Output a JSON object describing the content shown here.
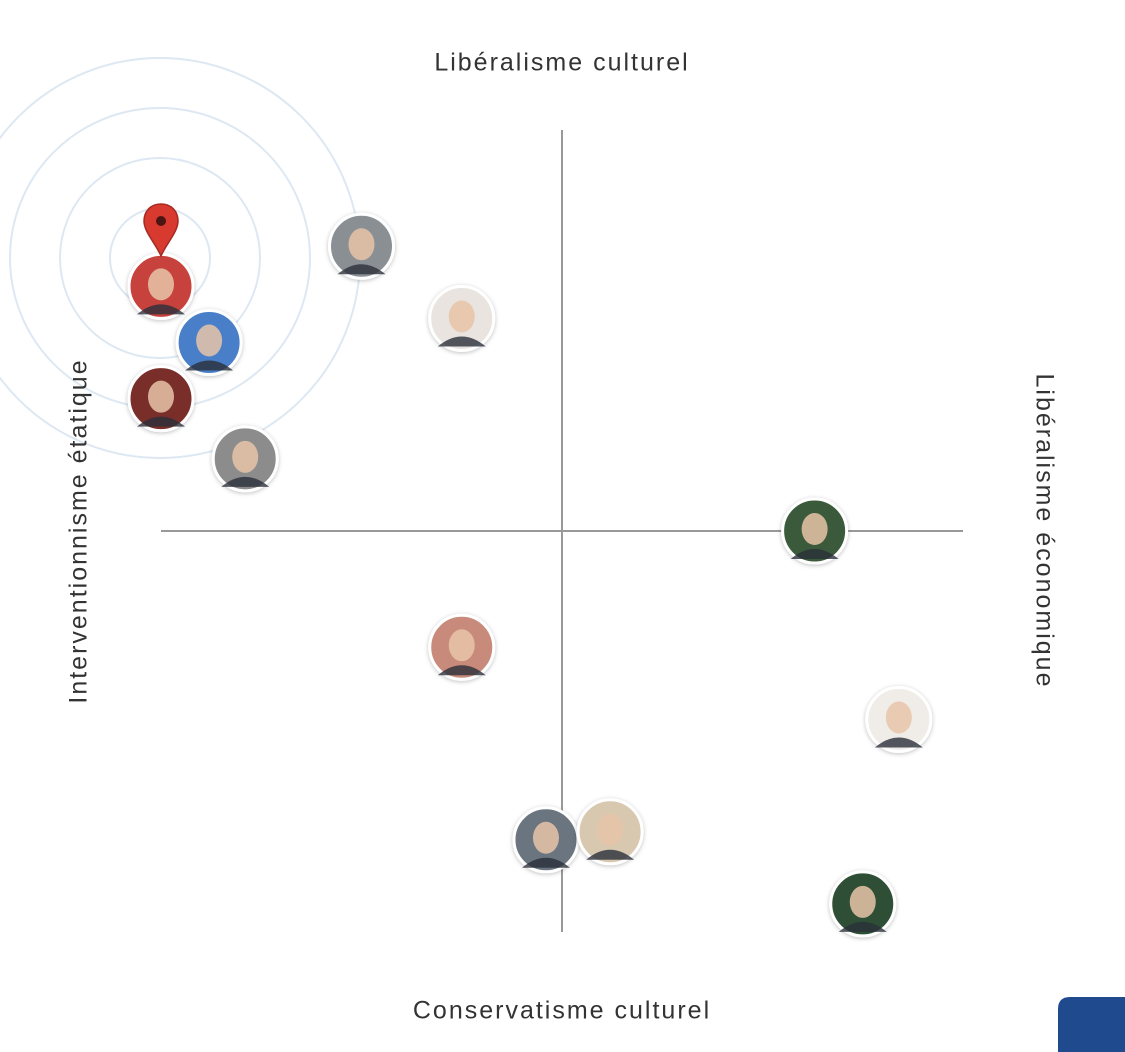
{
  "chart_data": {
    "type": "scatter",
    "top_label": "Libéralisme culturel",
    "bottom_label": "Conservatisme culturel",
    "left_label": "Interventionnisme étatique",
    "right_label": "Libéralisme économique",
    "xlim": [
      -1,
      1
    ],
    "ylim": [
      -1,
      1
    ],
    "x": [
      -1.0,
      -0.5,
      -0.25,
      -0.88,
      -1.0,
      -0.79,
      0.63,
      -0.25,
      0.84,
      -0.04,
      0.12,
      0.75
    ],
    "y": [
      0.61,
      0.71,
      0.53,
      0.47,
      0.33,
      0.18,
      0.0,
      -0.29,
      -0.47,
      -0.77,
      -0.75,
      -0.93
    ],
    "colors": [
      "#c8423e",
      "#8a8f94",
      "#e9e4df",
      "#4a7fc8",
      "#7a2e2a",
      "#8c8c8c",
      "#3a5a3a",
      "#c88a7a",
      "#f0ece8",
      "#6b7480",
      "#d8c8b0",
      "#2f4f35"
    ]
  }
}
